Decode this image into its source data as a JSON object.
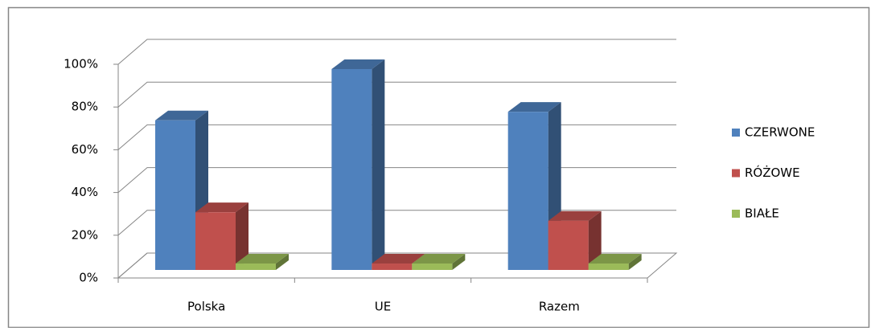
{
  "chart_data": {
    "type": "bar3d",
    "categories": [
      "Polska",
      "UE",
      "Razem"
    ],
    "series": [
      {
        "name": "CZERWONE",
        "color": "#4f81bd",
        "values": [
          70,
          94,
          74
        ]
      },
      {
        "name": "RÓŻOWE",
        "color": "#c0504d",
        "values": [
          27,
          3,
          23
        ]
      },
      {
        "name": "BIAŁE",
        "color": "#9bbb59",
        "values": [
          3,
          3,
          3
        ]
      }
    ],
    "ylim": [
      0,
      100
    ],
    "yticks": [
      {
        "value": 0,
        "label": "0%"
      },
      {
        "value": 20,
        "label": "20%"
      },
      {
        "value": 40,
        "label": "40%"
      },
      {
        "value": 60,
        "label": "60%"
      },
      {
        "value": 80,
        "label": "80%"
      },
      {
        "value": 100,
        "label": "100%"
      }
    ],
    "grid": true,
    "legend": "right"
  }
}
